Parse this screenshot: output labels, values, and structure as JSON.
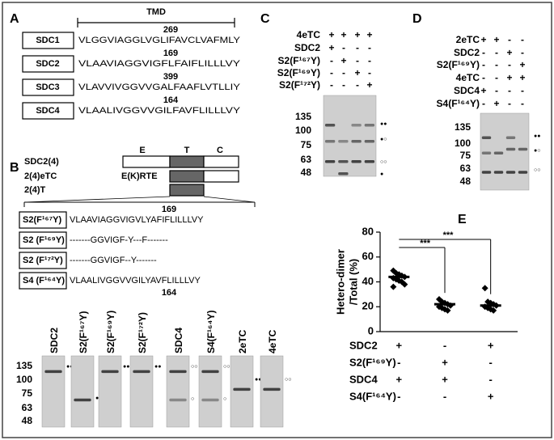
{
  "panel_labels": [
    "A",
    "B",
    "C",
    "D",
    "E"
  ],
  "panel_a": {
    "title": "TMD",
    "rows": [
      {
        "name": "SDC1",
        "sequence": "VLGGVIAGGLVGLIFAVCLVAFMLY",
        "position": "269"
      },
      {
        "name": "SDC2",
        "sequence": "VLAAVIAGGVIGFLFAIFLILLLVY",
        "position": "169"
      },
      {
        "name": "SDC3",
        "sequence": "VLAVVIVGGVVGALFAAFLVTLLIY",
        "position": "399"
      },
      {
        "name": "SDC4",
        "sequence": "VLAALIVGGVVGILFAVFLILLLVY",
        "position": "164"
      }
    ]
  },
  "panel_b": {
    "domains": [
      "E",
      "T",
      "C"
    ],
    "constructs": [
      {
        "name": "SDC2(4)"
      },
      {
        "name": "2(4)eTC",
        "ectodomain": "E(K)RTE"
      },
      {
        "name": "2(4)T"
      }
    ],
    "position_top": "169",
    "position_bottom": "164",
    "rows": [
      {
        "name": "S2(F¹⁶⁷Y)",
        "sequence": "VLAAVIAGGVIGVLYAFIFLILLLVY"
      },
      {
        "name": "S2 (F¹⁶⁹Y)",
        "sequence": "-------GGVIGF-Y---F-------"
      },
      {
        "name": "S2 (F¹⁷²Y)",
        "sequence": "-------GGVIGF--Y-------"
      },
      {
        "name": "S4 (F¹⁶⁴Y)",
        "sequence": "VLAALIVGGVVGILYAVFLILLLVY"
      }
    ],
    "ladder": [
      "135",
      "100",
      "75",
      "63",
      "48"
    ],
    "gels": [
      {
        "label": "SDC2",
        "dots": [
          "●●"
        ]
      },
      {
        "label": "S2(F¹⁶⁷Y)",
        "dots": [
          "●"
        ]
      },
      {
        "label": "S2(F¹⁶⁹Y)",
        "dots": [
          "●●"
        ]
      },
      {
        "label": "S2(F¹⁷²Y)",
        "dots": [
          "●●"
        ]
      },
      {
        "label": "SDC4",
        "dots": [
          "○○",
          "○"
        ]
      },
      {
        "label": "S4(F¹⁶⁴Y)",
        "dots": [
          "○○",
          "○"
        ]
      },
      {
        "label": "2eTC",
        "dots": [
          "●●"
        ]
      },
      {
        "label": "4eTC",
        "dots": [
          "○○"
        ]
      }
    ]
  },
  "panel_c": {
    "rows": [
      {
        "name": "4eTC",
        "signs": [
          "+",
          "+",
          "+",
          "+"
        ]
      },
      {
        "name": "SDC2",
        "signs": [
          "+",
          "-",
          "-",
          "-"
        ]
      },
      {
        "name": "S2(F¹⁶⁷Y)",
        "signs": [
          "-",
          "+",
          "-",
          "-"
        ]
      },
      {
        "name": "S2(F¹⁶⁹Y)",
        "signs": [
          "-",
          "-",
          "+",
          "-"
        ]
      },
      {
        "name": "S2(F¹⁷²Y)",
        "signs": [
          "-",
          "-",
          "-",
          "+"
        ]
      }
    ],
    "ladder": [
      "135",
      "100",
      "75",
      "63",
      "48"
    ],
    "dots": [
      "●●",
      "●○",
      "○○",
      "●"
    ]
  },
  "panel_d": {
    "rows": [
      {
        "name": "2eTC",
        "signs": [
          "+",
          "+",
          "-",
          "-"
        ]
      },
      {
        "name": "SDC2",
        "signs": [
          "-",
          "-",
          "+",
          "-"
        ]
      },
      {
        "name": "S2(F¹⁶⁹Y)",
        "signs": [
          "-",
          "-",
          "-",
          "+"
        ]
      },
      {
        "name": "4eTC",
        "signs": [
          "-",
          "-",
          "+",
          "+"
        ]
      },
      {
        "name": "SDC4",
        "signs": [
          "+",
          "-",
          "-",
          "-"
        ]
      },
      {
        "name": "S4(F¹⁶⁴Y)",
        "signs": [
          "-",
          "+",
          "-",
          "-"
        ]
      }
    ],
    "ladder": [
      "135",
      "100",
      "75",
      "63",
      "48"
    ],
    "dots": [
      "●●",
      "●○",
      "○○"
    ]
  },
  "chart_data": {
    "type": "dot",
    "ylabel": [
      "Hetero-dimer",
      "/Total (%)"
    ],
    "categories": [
      null,
      null,
      null
    ],
    "values": [
      44,
      22,
      21
    ],
    "points": [
      [
        49,
        47,
        46,
        45,
        44,
        43,
        42,
        41,
        40,
        38,
        36
      ],
      [
        26,
        24,
        23,
        22,
        21,
        20,
        19,
        18,
        17
      ],
      [
        35,
        24,
        23,
        22,
        21,
        20,
        19,
        18,
        17
      ]
    ],
    "color": "#000000",
    "ylim": [
      0,
      80
    ],
    "yticks": [
      0,
      20,
      40,
      60,
      80
    ],
    "significance": [
      "***",
      "***"
    ],
    "conditions": [
      {
        "name": "SDC2",
        "signs": [
          "+",
          "-",
          "+"
        ]
      },
      {
        "name": "S2(F¹⁶⁹Y)",
        "signs": [
          "-",
          "+",
          "-"
        ]
      },
      {
        "name": "SDC4",
        "signs": [
          "+",
          "+",
          "-"
        ]
      },
      {
        "name": "S4(F¹⁶⁴Y)",
        "signs": [
          "-",
          "-",
          "+"
        ]
      }
    ]
  }
}
